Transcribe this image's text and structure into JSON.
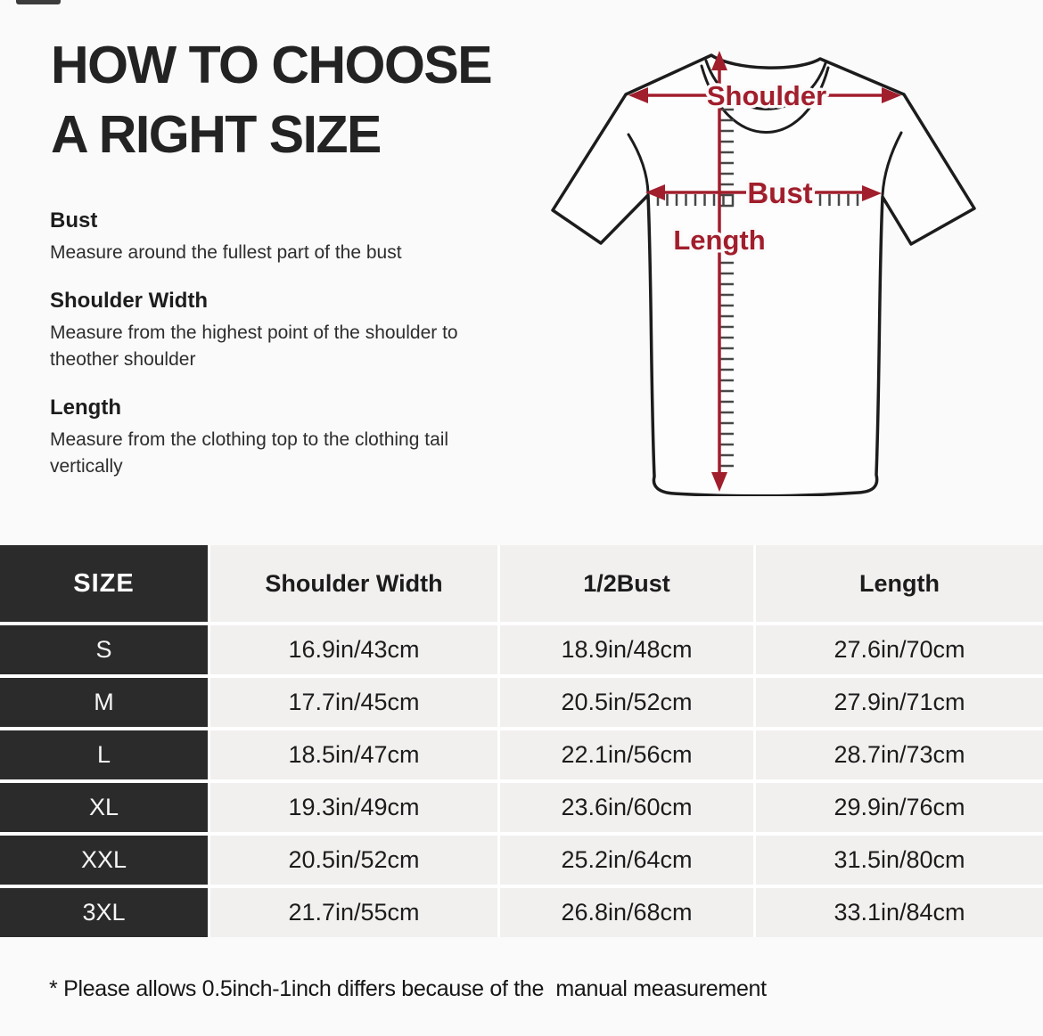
{
  "title": {
    "line1": "HOW TO CHOOSE",
    "line2": "A RIGHT SIZE"
  },
  "instructions": [
    {
      "heading": "Bust",
      "text": "Measure around the fullest part of the bust"
    },
    {
      "heading": "Shoulder Width",
      "text": "Measure from the highest point of the shoulder to theother shoulder"
    },
    {
      "heading": "Length",
      "text": "Measure from the clothing top to the clothing tail vertically"
    }
  ],
  "diagram": {
    "labels": {
      "shoulder": "Shoulder",
      "bust": "Bust",
      "length": "Length"
    },
    "accent_color": "#a11e2c",
    "outline_color": "#1c1c1c",
    "tick_color": "#474747"
  },
  "size_table": {
    "headers": [
      "SIZE",
      "Shoulder Width",
      "1/2Bust",
      "Length"
    ],
    "rows": [
      {
        "size": "S",
        "shoulder": "16.9in/43cm",
        "half_bust": "18.9in/48cm",
        "length": "27.6in/70cm"
      },
      {
        "size": "M",
        "shoulder": "17.7in/45cm",
        "half_bust": "20.5in/52cm",
        "length": "27.9in/71cm"
      },
      {
        "size": "L",
        "shoulder": "18.5in/47cm",
        "half_bust": "22.1in/56cm",
        "length": "28.7in/73cm"
      },
      {
        "size": "XL",
        "shoulder": "19.3in/49cm",
        "half_bust": "23.6in/60cm",
        "length": "29.9in/76cm"
      },
      {
        "size": "XXL",
        "shoulder": "20.5in/52cm",
        "half_bust": "25.2in/64cm",
        "length": "31.5in/80cm"
      },
      {
        "size": "3XL",
        "shoulder": "21.7in/55cm",
        "half_bust": "26.8in/68cm",
        "length": "33.1in/84cm"
      }
    ],
    "header_bg": "#2b2b2b",
    "cell_bg": "#f2f0ef"
  },
  "footnote": "* Please allows 0.5inch-1inch differs because of the  manual measurement"
}
